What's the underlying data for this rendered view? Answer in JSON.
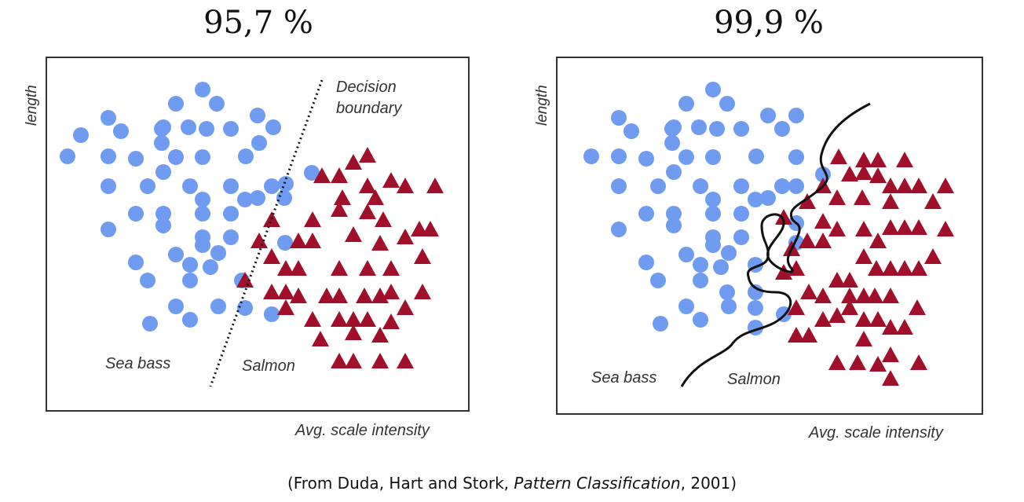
{
  "titles": {
    "left": "95,7 %",
    "right": "99,9 %"
  },
  "caption": {
    "prefix": "(From Duda, Hart and Stork, ",
    "book": "Pattern Classification",
    "suffix": ", 2001)"
  },
  "colors": {
    "sea_bass": "#6f9cf0",
    "salmon": "#a0102a",
    "boundary": "#111111",
    "frame": "#333333"
  },
  "chart_data": [
    {
      "type": "scatter",
      "title": "95,7 %",
      "xlabel": "Avg. scale intensity",
      "ylabel": "length",
      "annotations": [
        "Decision boundary"
      ],
      "region_labels": [
        "Sea bass",
        "Salmon"
      ],
      "boundary": "linear"
    },
    {
      "type": "scatter",
      "title": "99,9 %",
      "xlabel": "Avg. scale intensity",
      "ylabel": "length",
      "region_labels": [
        "Sea bass",
        "Salmon"
      ],
      "boundary": "non-linear"
    }
  ]
}
